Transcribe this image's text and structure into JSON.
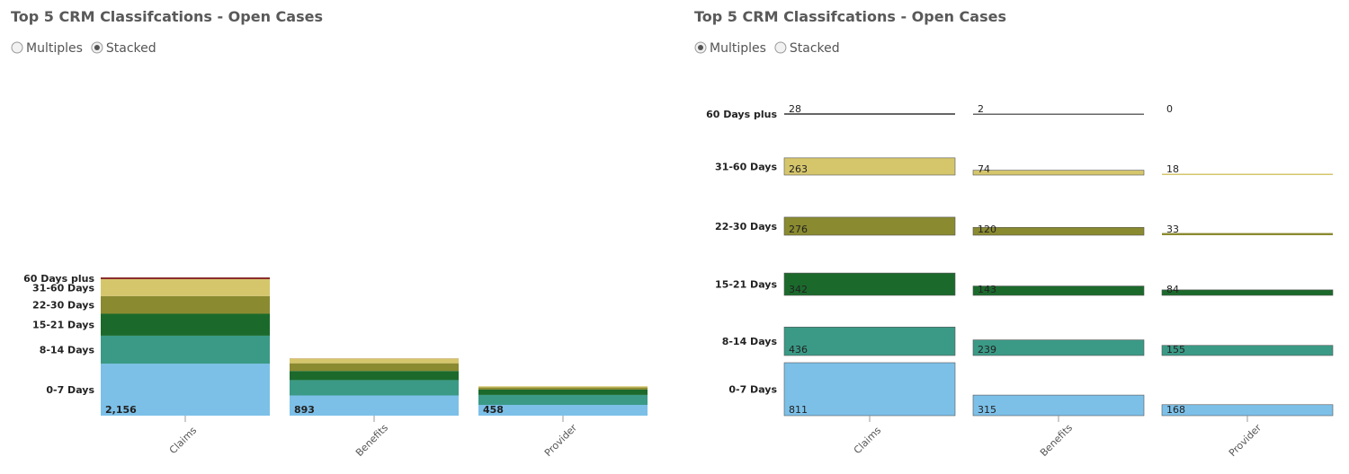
{
  "chart_data": [
    {
      "type": "bar",
      "mode": "stacked",
      "title": "Top 5 CRM Classifcations - Open Cases",
      "options": [
        "Multiples",
        "Stacked"
      ],
      "selected": 1,
      "categories": [
        "Claims",
        "Benefits",
        "Provider"
      ],
      "series": [
        {
          "name": "0-7 Days",
          "color": "#7cc0e8",
          "values": [
            811,
            315,
            168
          ]
        },
        {
          "name": "8-14 Days",
          "color": "#3a9a86",
          "values": [
            436,
            239,
            155
          ]
        },
        {
          "name": "15-21 Days",
          "color": "#1b6a2c",
          "values": [
            342,
            143,
            84
          ]
        },
        {
          "name": "22-30 Days",
          "color": "#8a8a30",
          "values": [
            276,
            120,
            33
          ]
        },
        {
          "name": "31-60 Days",
          "color": "#d5c66c",
          "values": [
            263,
            74,
            18
          ]
        },
        {
          "name": "60 Days plus",
          "color": "#8b2e2e",
          "values": [
            28,
            2,
            0
          ]
        }
      ],
      "totals": [
        2156,
        893,
        458
      ],
      "total_labels": [
        "2,156",
        "893",
        "458"
      ]
    },
    {
      "type": "bar",
      "mode": "multiples",
      "title": "Top 5 CRM Classifcations - Open Cases",
      "options": [
        "Multiples",
        "Stacked"
      ],
      "selected": 0,
      "categories": [
        "Claims",
        "Benefits",
        "Provider"
      ],
      "series": [
        {
          "name": "0-7 Days",
          "color": "#7cc0e8",
          "values": [
            811,
            315,
            168
          ]
        },
        {
          "name": "8-14 Days",
          "color": "#3a9a86",
          "values": [
            436,
            239,
            155
          ]
        },
        {
          "name": "15-21 Days",
          "color": "#1b6a2c",
          "values": [
            342,
            143,
            84
          ]
        },
        {
          "name": "22-30 Days",
          "color": "#8a8a30",
          "values": [
            276,
            120,
            33
          ]
        },
        {
          "name": "31-60 Days",
          "color": "#d5c66c",
          "values": [
            263,
            74,
            18
          ]
        },
        {
          "name": "60 Days plus",
          "color": "#666666",
          "values": [
            28,
            2,
            0
          ]
        }
      ]
    }
  ]
}
